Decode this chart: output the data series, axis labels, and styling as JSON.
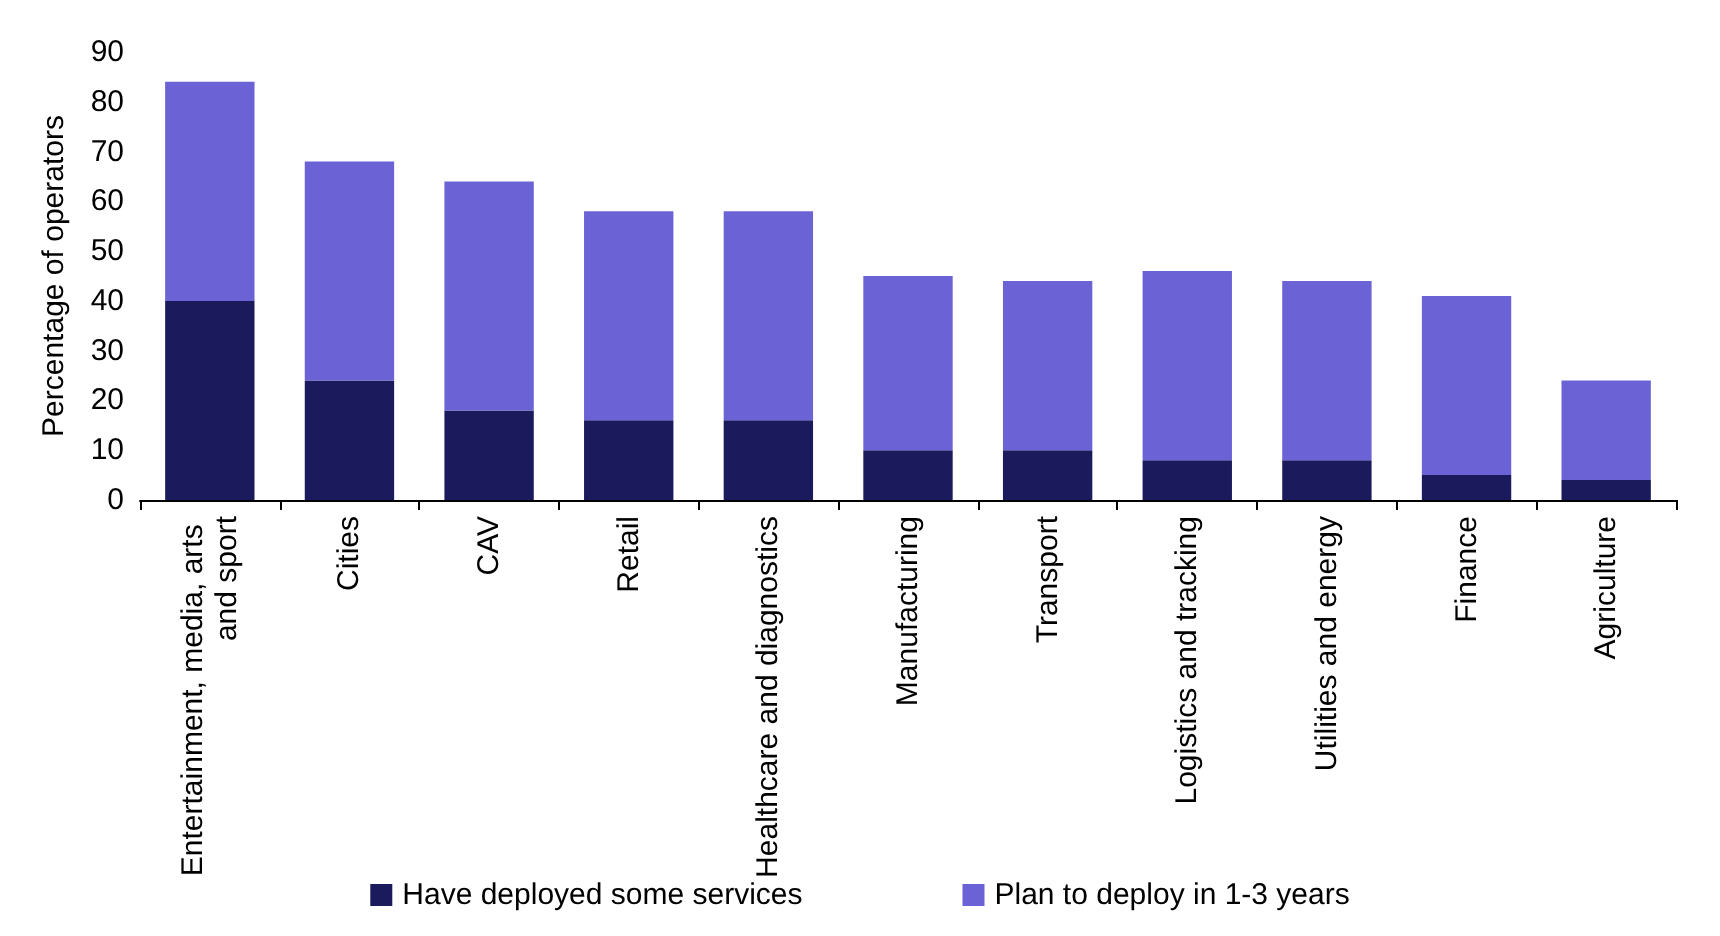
{
  "chart_data": {
    "type": "bar",
    "stacked": true,
    "ylabel": "Percentage of operators",
    "categories": [
      "Entertainment, media, arts and sport",
      "Cities",
      "CAV",
      "Retail",
      "Healthcare and diagnostics",
      "Manufacturing",
      "Transport",
      "Logistics and tracking",
      "Utilities and energy",
      "Finance",
      "Agriculture"
    ],
    "series": [
      {
        "name": "Have deployed some services",
        "color": "#1b1a5c",
        "values": [
          40,
          24,
          18,
          16,
          16,
          10,
          10,
          8,
          8,
          5,
          4
        ]
      },
      {
        "name": "Plan to deploy in 1-3 years",
        "color": "#6b62d6",
        "values": [
          44,
          44,
          46,
          42,
          42,
          35,
          34,
          38,
          36,
          36,
          20
        ]
      }
    ],
    "ylim": [
      0,
      90
    ],
    "yticks": [
      0,
      10,
      20,
      30,
      40,
      50,
      60,
      70,
      80,
      90
    ],
    "grid": false,
    "legend": "bottom"
  }
}
